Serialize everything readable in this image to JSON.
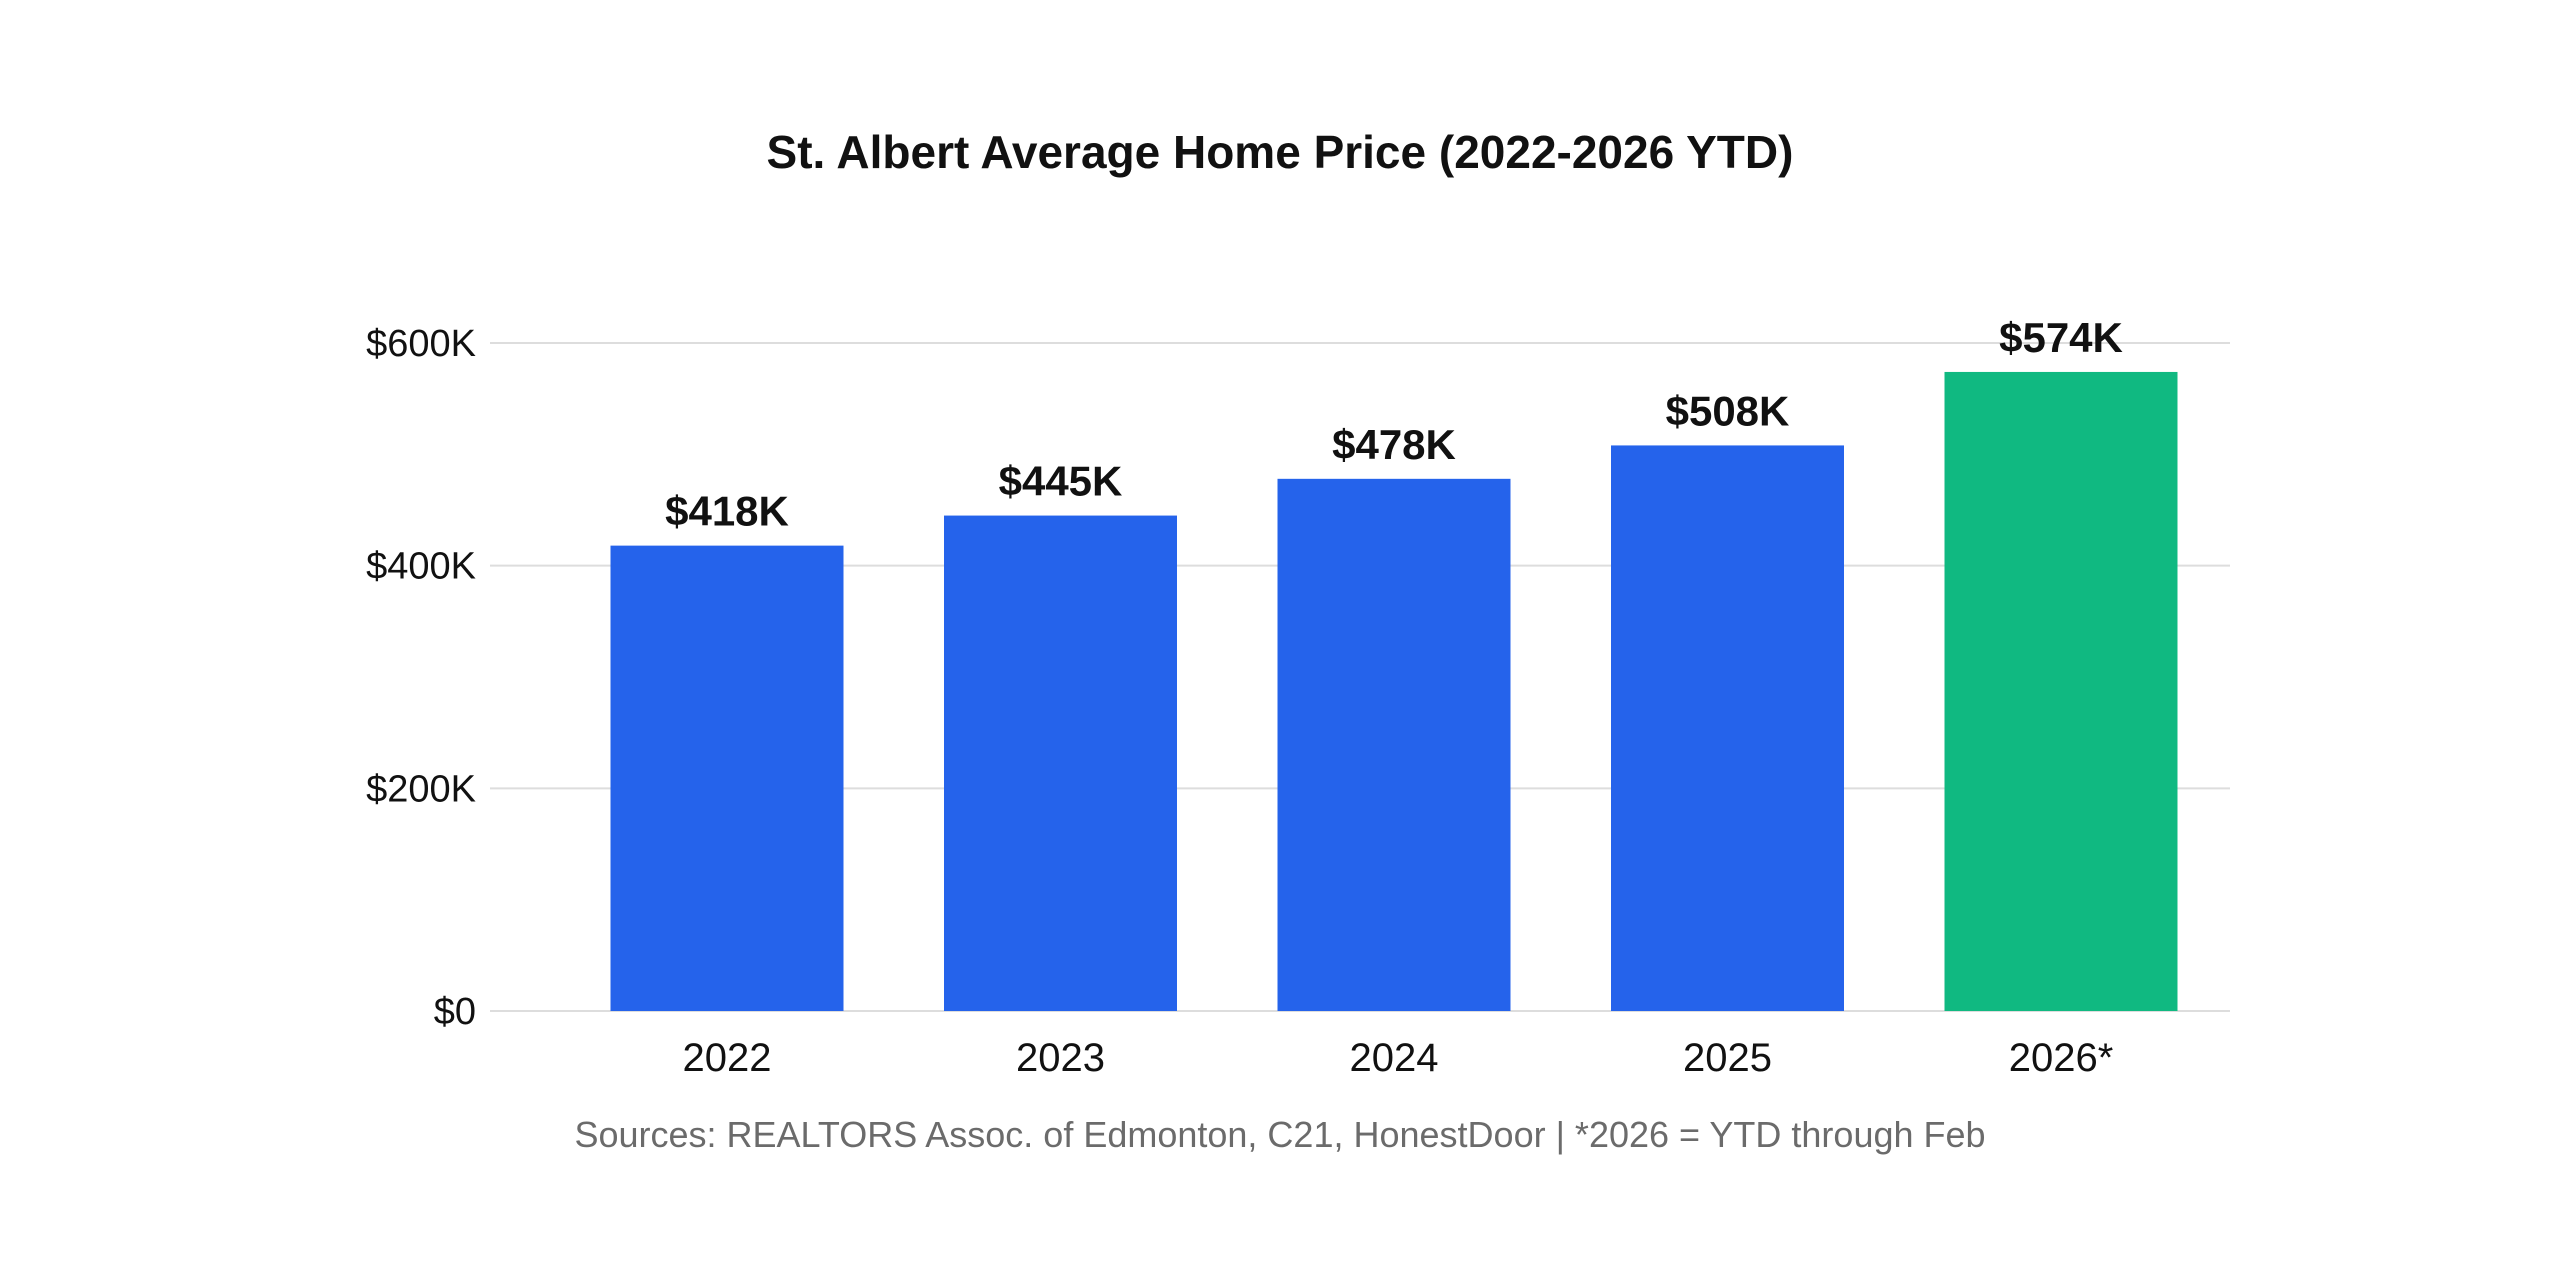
{
  "chart_data": {
    "type": "bar",
    "title": "St. Albert Average Home Price (2022-2026 YTD)",
    "xlabel": "",
    "ylabel": "",
    "categories": [
      "2022",
      "2023",
      "2024",
      "2025",
      "2026*"
    ],
    "values": [
      418,
      445,
      478,
      508,
      574
    ],
    "data_labels": [
      "$418K",
      "$445K",
      "$478K",
      "$508K",
      "$574K"
    ],
    "bar_colors": [
      "#2563eb",
      "#2563eb",
      "#2563eb",
      "#2563eb",
      "#10b981"
    ],
    "ylim": [
      0,
      600
    ],
    "yticks": [
      0,
      200,
      400,
      600
    ],
    "ytick_labels": [
      "$0",
      "$200K",
      "$400K",
      "$600K"
    ],
    "grid": true,
    "legend": "none",
    "source_note": "Sources: REALTORS Assoc. of Edmonton, C21, HonestDoor | *2026 = YTD through Feb"
  }
}
